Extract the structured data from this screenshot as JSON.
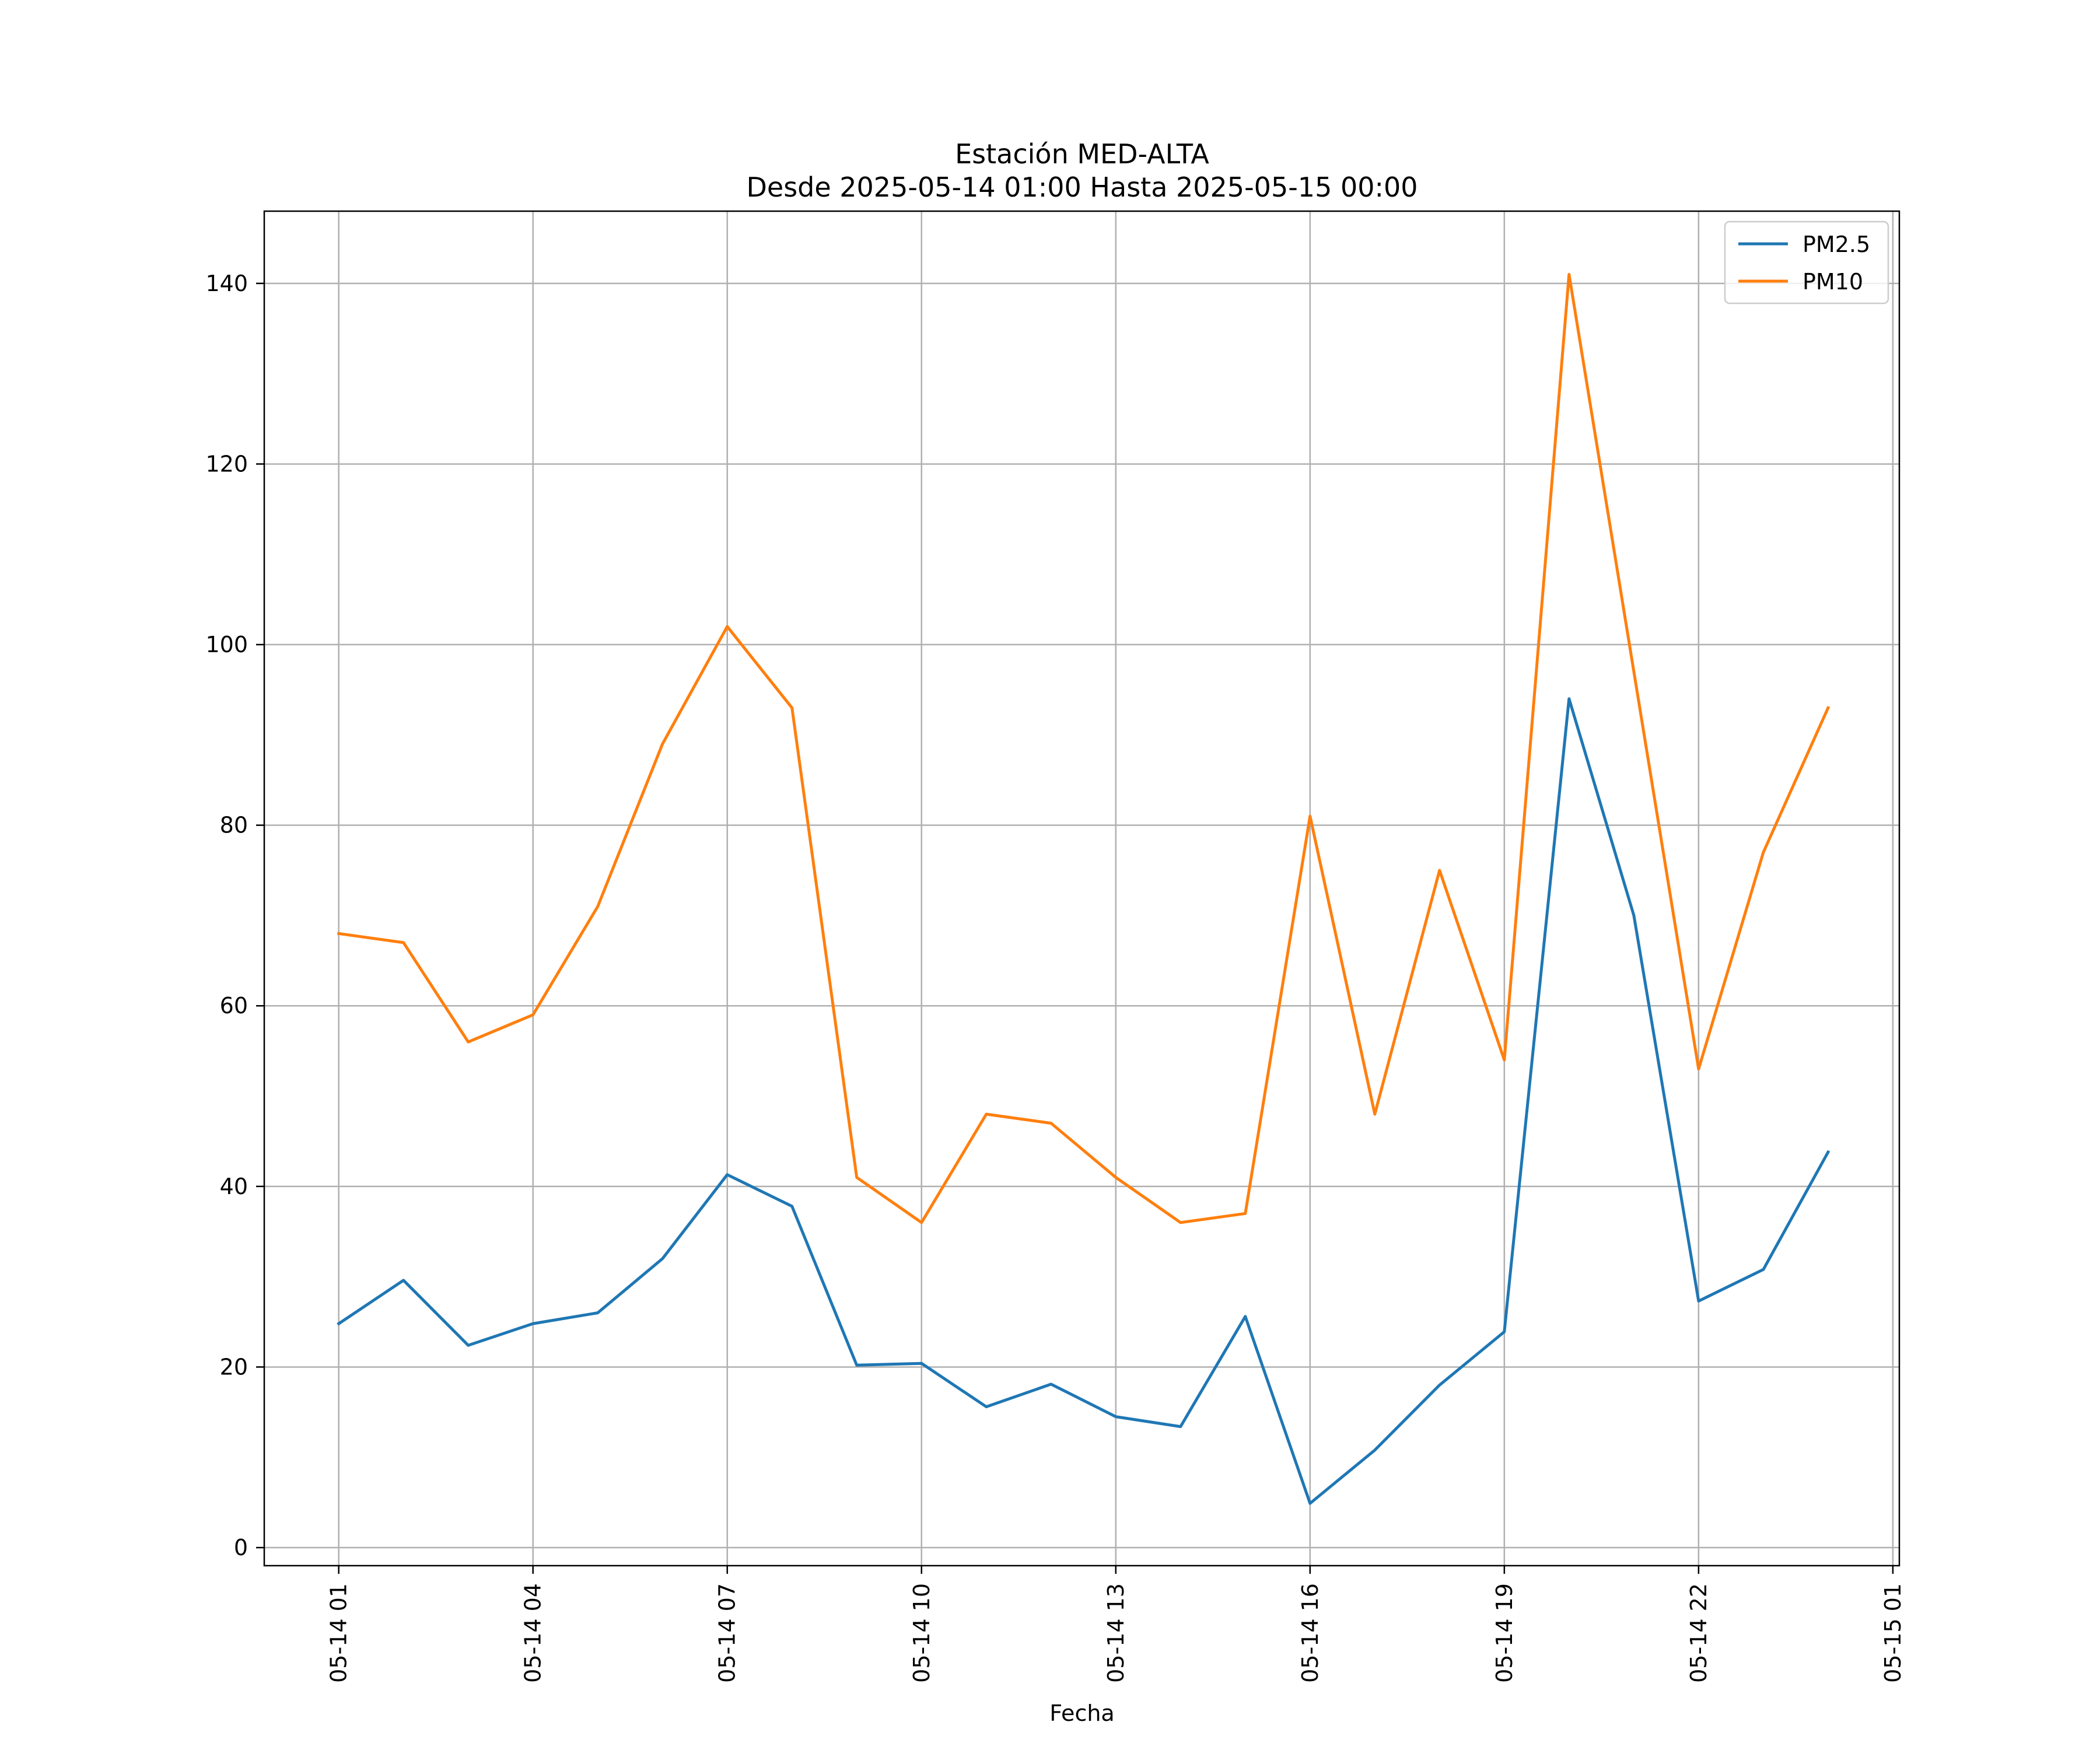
{
  "chart_data": {
    "type": "line",
    "title": "Estación MED-ALTA",
    "subtitle": "Desde 2025-05-14 01:00 Hasta 2025-05-15 00:00",
    "xlabel": "Fecha",
    "ylabel": "",
    "x": [
      "2025-05-14 01:00",
      "2025-05-14 02:00",
      "2025-05-14 03:00",
      "2025-05-14 04:00",
      "2025-05-14 05:00",
      "2025-05-14 06:00",
      "2025-05-14 07:00",
      "2025-05-14 08:00",
      "2025-05-14 09:00",
      "2025-05-14 10:00",
      "2025-05-14 11:00",
      "2025-05-14 12:00",
      "2025-05-14 13:00",
      "2025-05-14 14:00",
      "2025-05-14 15:00",
      "2025-05-14 16:00",
      "2025-05-14 17:00",
      "2025-05-14 18:00",
      "2025-05-14 19:00",
      "2025-05-14 20:00",
      "2025-05-14 21:00",
      "2025-05-14 22:00",
      "2025-05-14 23:00",
      "2025-05-15 00:00"
    ],
    "xlim": [
      "2025-05-13 23:51",
      "2025-05-15 01:06"
    ],
    "xticks": [
      "05-14 01",
      "05-14 04",
      "05-14 07",
      "05-14 10",
      "05-14 13",
      "05-14 16",
      "05-14 19",
      "05-14 22",
      "05-15 01"
    ],
    "xticks_at": [
      "2025-05-14 01:00",
      "2025-05-14 04:00",
      "2025-05-14 07:00",
      "2025-05-14 10:00",
      "2025-05-14 13:00",
      "2025-05-14 16:00",
      "2025-05-14 19:00",
      "2025-05-14 22:00",
      "2025-05-15 01:00"
    ],
    "ylim": [
      -2,
      148
    ],
    "yticks": [
      0,
      20,
      40,
      60,
      80,
      100,
      120,
      140
    ],
    "grid": true,
    "legend": "top-right",
    "series": [
      {
        "name": "PM2.5",
        "color": "#1f77b4",
        "values": [
          24.8,
          29.6,
          22.4,
          24.8,
          26.0,
          32.0,
          41.3,
          37.8,
          20.2,
          20.4,
          15.6,
          18.1,
          14.5,
          13.4,
          25.6,
          4.9,
          10.8,
          18.0,
          23.9,
          94.0,
          70.0,
          27.3,
          30.8,
          43.8
        ]
      },
      {
        "name": "PM10",
        "color": "#ff7f0e",
        "values": [
          68,
          67,
          56,
          59,
          71,
          89,
          102,
          93,
          41,
          36,
          48,
          47,
          41,
          36,
          37,
          81,
          48,
          75,
          54,
          141,
          97,
          53,
          77,
          93
        ]
      }
    ]
  }
}
